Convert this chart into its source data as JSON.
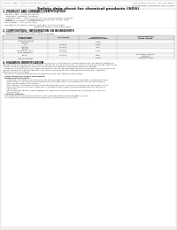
{
  "bg_color": "#f0f0eb",
  "page_bg": "#ffffff",
  "header_left": "Product Name: Lithium Ion Battery Cell",
  "header_right1": "Publication Control: SDS-049-00010",
  "header_right2": "Established / Revision: Dec.7.2010",
  "main_title": "Safety data sheet for chemical products (SDS)",
  "s1_title": "1. PRODUCT AND COMPANY IDENTIFICATION",
  "s1_lines": [
    " • Product name: Lithium Ion Battery Cell",
    " • Product code: Cylindrical-type cell",
    "     SR18650U, SR18650L, SR18650A",
    " • Company name:    Sanyo Electric Co., Ltd., Mobile Energy Company",
    " • Address:            2-21-1  Kaminaizen, Sumoto-City, Hyogo, Japan",
    " • Telephone number:   +81-799-26-4111",
    " • Fax number:   +81-799-26-4129",
    " • Emergency telephone number (Weekday) +81-799-26-3962",
    "                                               (Night and holiday) +81-799-26-4101"
  ],
  "s2_title": "2. COMPOSITION / INFORMATION ON INGREDIENTS",
  "s2_sub1": " • Substance or preparation: Preparation",
  "s2_sub2": " • Information about the chemical nature of product",
  "th": [
    "Chemical name /\nSeveral name",
    "CAS number",
    "Concentration /\nConcentration range",
    "Classification and\nhazard labeling"
  ],
  "tr1": [
    "Lithium cobalt oxide\n(LiMnCoO₂)",
    "-",
    "30-60%",
    "-"
  ],
  "tr2": [
    "Iron",
    "7439-89-6",
    "10-20%",
    "-"
  ],
  "tr3": [
    "Aluminum",
    "7429-90-5",
    "2-6%",
    "-"
  ],
  "tr4": [
    "Graphite\n(Mixed in graphite-1)\n(All-Mix graphite-1)",
    "7782-42-5\n17702-41-3",
    "10-20%",
    "-"
  ],
  "tr5": [
    "Copper",
    "7440-50-8",
    "5-15%",
    "Sensitization of the skin\ngroup No.2"
  ],
  "tr6": [
    "Organic electrolyte",
    "-",
    "10-20%",
    "Inflammable liquid"
  ],
  "s3_title": "3. HAZARDS IDENTIFICATION",
  "s3_p1": "For the battery cell, chemical substances are stored in a hermetically-sealed metal case, designed to withstand",
  "s3_p2": "temperatures accompanying with battery-operations during normal use. As a result, during normal use, there is no",
  "s3_p3": "physical danger of ignition or explosion and there is no danger of hazardous materials leakage.",
  "s3_p4": "   However, if exposed to a fire, added mechanical shocks, decomposed, when electrical-short circuits may occur,",
  "s3_p5": "the gas release vent-pin be operated. The battery cell case will be breached at fire-extreme. Hazardous",
  "s3_p6": "materials may be released.",
  "s3_p7": "   Moreover, if heated strongly by the surrounding fire, soot gas may be emitted.",
  "s3_b1": " • Most important hazard and effects:",
  "s3_hh": "   Human health effects:",
  "s3_inh": "      Inhalation: The release of the electrolyte has an anaesthesia action and stimulates in respiratory tract.",
  "s3_sk": "      Skin contact: The release of the electrolyte stimulates a skin. The electrolyte skin contact causes a",
  "s3_sk2": "      sore and stimulation on the skin.",
  "s3_ey": "      Eye contact: The release of the electrolyte stimulates eyes. The electrolyte eye contact causes a sore",
  "s3_ey2": "      and stimulation on the eye. Especially, a substance that causes a strong inflammation of the eye is",
  "s3_ey3": "      contained.",
  "s3_env": "      Environmental effects: Since a battery cell remains in the environment, do not throw out it into the",
  "s3_env2": "      environment.",
  "s3_b2": " • Specific hazards:",
  "s3_sp1": "   If the electrolyte contacts with water, it will generate detrimental hydrogen fluoride.",
  "s3_sp2": "   Since the used electrolyte is inflammable liquid, do not bring close to fire."
}
